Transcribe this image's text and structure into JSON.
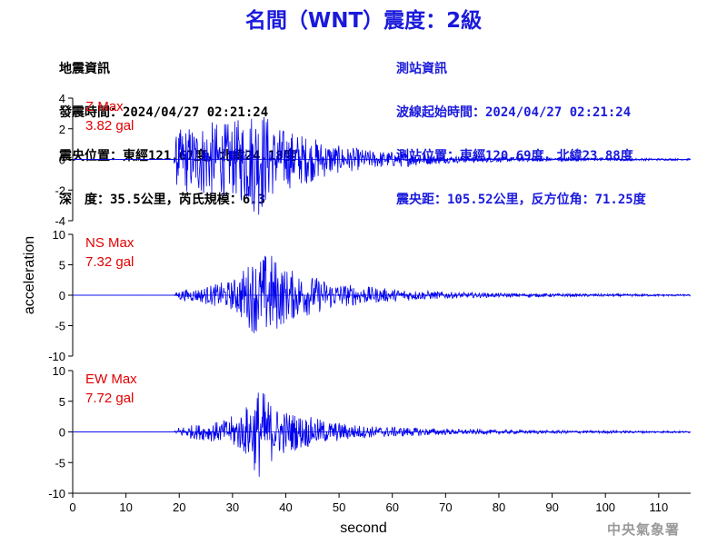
{
  "header": {
    "title": "名間（WNT）震度：2級"
  },
  "quake_info": {
    "lines": [
      "地震資訊",
      "發震時間：2024/04/27 02:21:24",
      "震央位置：東經121.67度，北緯24.18度",
      "深　度：35.5公里，芮氏規模：6.3"
    ]
  },
  "station_info": {
    "lines": [
      "測站資訊",
      "波線起始時間：2024/04/27 02:21:24",
      "測站位置：東經120.69度，北緯23.88度",
      "震央距：105.52公里，反方位角：71.25度"
    ]
  },
  "footer": {
    "agency": "中央氣象署"
  },
  "colors": {
    "trace": "#0000ee",
    "label": "#e00000",
    "title": "#1a1adc"
  },
  "chart_data": {
    "type": "line",
    "xlabel": "second",
    "ylabel": "acceleration",
    "xlim": [
      0,
      116
    ],
    "x_ticks": [
      0,
      10,
      20,
      30,
      40,
      50,
      60,
      70,
      80,
      90,
      100,
      110
    ],
    "panels": [
      {
        "component": "Z",
        "label": "Z Max",
        "max_text": "3.82 gal",
        "max_value": 3.82,
        "ylim": [
          -4,
          4
        ],
        "y_ticks": [
          -4,
          -2,
          0,
          2,
          4
        ],
        "envelope": [
          [
            0,
            0
          ],
          [
            19,
            0.02
          ],
          [
            19.5,
            1.8
          ],
          [
            21,
            2.2
          ],
          [
            25,
            2.5
          ],
          [
            30,
            2.4
          ],
          [
            35,
            3.8
          ],
          [
            38,
            2.2
          ],
          [
            42,
            1.8
          ],
          [
            50,
            0.9
          ],
          [
            56,
            0.6
          ],
          [
            62,
            0.5
          ],
          [
            70,
            0.25
          ],
          [
            80,
            0.18
          ],
          [
            90,
            0.12
          ],
          [
            100,
            0.09
          ],
          [
            116,
            0.06
          ]
        ]
      },
      {
        "component": "NS",
        "label": "NS Max",
        "max_text": "7.32 gal",
        "max_value": 7.32,
        "ylim": [
          -10,
          10
        ],
        "y_ticks": [
          -10,
          -5,
          0,
          5,
          10
        ],
        "envelope": [
          [
            0,
            0
          ],
          [
            19,
            0.02
          ],
          [
            20,
            0.9
          ],
          [
            24,
            1.2
          ],
          [
            25,
            1.5
          ],
          [
            30,
            2.5
          ],
          [
            34,
            6.3
          ],
          [
            37,
            7.3
          ],
          [
            40,
            4.5
          ],
          [
            45,
            3.2
          ],
          [
            50,
            2.0
          ],
          [
            58,
            1.2
          ],
          [
            65,
            0.8
          ],
          [
            72,
            0.5
          ],
          [
            80,
            0.35
          ],
          [
            95,
            0.25
          ],
          [
            116,
            0.15
          ]
        ]
      },
      {
        "component": "EW",
        "label": "EW Max",
        "max_text": "7.72 gal",
        "max_value": 7.72,
        "ylim": [
          -10,
          10
        ],
        "y_ticks": [
          -10,
          -5,
          0,
          5,
          10
        ],
        "envelope": [
          [
            0,
            0
          ],
          [
            19,
            0.02
          ],
          [
            20,
            0.9
          ],
          [
            24,
            1.3
          ],
          [
            28,
            1.8
          ],
          [
            32,
            3.5
          ],
          [
            35,
            7.7
          ],
          [
            38,
            4.2
          ],
          [
            42,
            3.0
          ],
          [
            48,
            1.8
          ],
          [
            55,
            1.0
          ],
          [
            62,
            0.8
          ],
          [
            70,
            0.5
          ],
          [
            80,
            0.35
          ],
          [
            95,
            0.25
          ],
          [
            116,
            0.15
          ]
        ]
      }
    ]
  }
}
